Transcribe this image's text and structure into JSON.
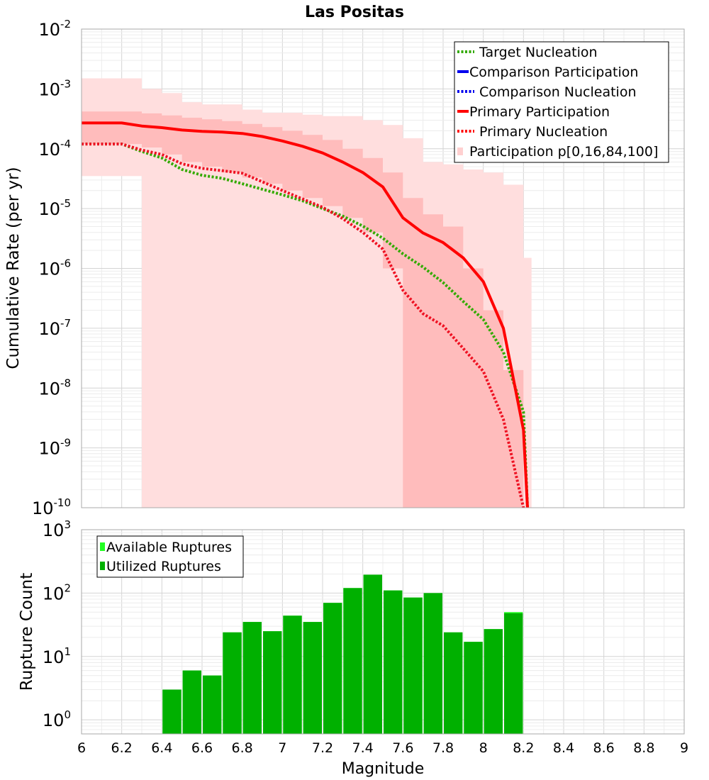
{
  "chart_data": [
    {
      "type": "line",
      "title": "Las Positas",
      "xlabel": "",
      "ylabel": "Cumulative Rate (per yr)",
      "yscale": "log",
      "xlim": [
        6,
        9
      ],
      "ylim": [
        1e-10,
        0.01
      ],
      "y_tick_exponents": [
        "-10",
        "-9",
        "-8",
        "-7",
        "-6",
        "-5",
        "-4",
        "-3",
        "-2"
      ],
      "y_tick_base": "10",
      "legend_position": "top-right",
      "legend": [
        {
          "label": "Target Nucleation",
          "color": "#33aa00",
          "style": "dotted"
        },
        {
          "label": "Comparison Participation",
          "color": "#0000ee",
          "style": "solid"
        },
        {
          "label": "Comparison Nucleation",
          "color": "#0000ee",
          "style": "dotted"
        },
        {
          "label": "Primary Participation",
          "color": "#ff0000",
          "style": "solid"
        },
        {
          "label": "Primary Nucleation",
          "color": "#ff0000",
          "style": "dotted"
        },
        {
          "label": "Participation p[0,16,84,100]",
          "color": "#ffd0d0",
          "style": "band"
        }
      ],
      "bands": {
        "name": "Participation p[0,16,84,100]",
        "x": [
          6.0,
          6.2,
          6.3,
          6.4,
          6.5,
          6.6,
          6.7,
          6.8,
          6.9,
          7.0,
          7.1,
          7.2,
          7.3,
          7.4,
          7.5,
          7.6,
          7.7,
          7.8,
          7.9,
          8.0,
          8.1,
          8.2
        ],
        "p0": [
          3.5e-05,
          3.5e-05,
          1e-10,
          1e-10,
          1e-10,
          1e-10,
          1e-10,
          1e-10,
          1e-10,
          1e-10,
          1e-10,
          1e-10,
          1e-10,
          1e-10,
          1e-10,
          1e-10,
          1e-10,
          1e-10,
          1e-10,
          1e-10,
          1e-10,
          1e-10
        ],
        "p16": [
          0.00012,
          0.00012,
          0.000105,
          8e-05,
          6e-05,
          5e-05,
          4e-05,
          3.3e-05,
          2.6e-05,
          2e-05,
          1.5e-05,
          1.1e-05,
          7e-06,
          4e-06,
          1e-06,
          1e-10,
          1e-10,
          1e-10,
          1e-10,
          1e-10,
          1e-10,
          1e-10
        ],
        "p84": [
          0.00042,
          0.00042,
          0.00039,
          0.00036,
          0.00033,
          0.00031,
          0.00029,
          0.00026,
          0.00023,
          0.0002,
          0.00017,
          0.00014,
          0.0001,
          7e-05,
          4e-05,
          1.5e-05,
          8e-06,
          5e-06,
          1e-06,
          2e-07,
          2e-08,
          1e-10
        ],
        "p100": [
          0.0015,
          0.0015,
          0.001,
          0.00085,
          0.0006,
          0.00055,
          0.00055,
          0.00045,
          0.0004,
          0.0004,
          0.00037,
          0.00035,
          0.00035,
          0.0003,
          0.00025,
          0.00015,
          6e-05,
          5.5e-05,
          4.5e-05,
          4e-05,
          2.5e-05,
          1.5e-06
        ]
      },
      "series": [
        {
          "name": "Target Nucleation",
          "color": "#33aa00",
          "style": "dotted",
          "x": [
            6.0,
            6.2,
            6.3,
            6.4,
            6.5,
            6.6,
            6.7,
            6.8,
            6.9,
            7.0,
            7.1,
            7.2,
            7.3,
            7.4,
            7.5,
            7.6,
            7.7,
            7.8,
            7.9,
            8.0,
            8.1,
            8.2,
            8.22
          ],
          "y": [
            0.00012,
            0.00012,
            9e-05,
            7e-05,
            4.5e-05,
            3.6e-05,
            3.2e-05,
            2.6e-05,
            2.1e-05,
            1.7e-05,
            1.35e-05,
            1e-05,
            7.5e-06,
            5.1e-06,
            3.2e-06,
            1.75e-06,
            1.05e-06,
            5.8e-07,
            2.8e-07,
            1.4e-07,
            4e-08,
            4e-09,
            1e-10
          ]
        },
        {
          "name": "Primary Participation",
          "color": "#ff0000",
          "style": "solid",
          "x": [
            6.0,
            6.2,
            6.3,
            6.4,
            6.5,
            6.6,
            6.7,
            6.8,
            6.9,
            7.0,
            7.1,
            7.2,
            7.3,
            7.4,
            7.5,
            7.6,
            7.7,
            7.8,
            7.9,
            8.0,
            8.1,
            8.2,
            8.22
          ],
          "y": [
            0.00027,
            0.00027,
            0.00024,
            0.000225,
            0.000205,
            0.000195,
            0.00019,
            0.00018,
            0.00016,
            0.000135,
            0.00011,
            8.5e-05,
            6e-05,
            4e-05,
            2.3e-05,
            7e-06,
            3.9e-06,
            2.7e-06,
            1.5e-06,
            6e-07,
            1e-07,
            2e-09,
            1e-10
          ]
        },
        {
          "name": "Primary Nucleation",
          "color": "#ee1122",
          "style": "dotted",
          "x": [
            6.0,
            6.2,
            6.3,
            6.4,
            6.5,
            6.6,
            6.7,
            6.8,
            6.9,
            7.0,
            7.1,
            7.2,
            7.3,
            7.4,
            7.5,
            7.6,
            7.7,
            7.8,
            7.9,
            8.0,
            8.1,
            8.2
          ],
          "y": [
            0.00012,
            0.00012,
            9.5e-05,
            8e-05,
            5.6e-05,
            4.7e-05,
            4.3e-05,
            3.9e-05,
            2.8e-05,
            2e-05,
            1.45e-05,
            1.05e-05,
            6.8e-06,
            4e-06,
            2.1e-06,
            4.3e-07,
            1.75e-07,
            1.1e-07,
            4.6e-08,
            1.9e-08,
            3e-09,
            1e-10
          ]
        }
      ]
    },
    {
      "type": "bar",
      "xlabel": "Magnitude",
      "ylabel": "Rupture Count",
      "yscale": "log",
      "xlim": [
        6,
        9
      ],
      "ylim": [
        0.6,
        1000
      ],
      "y_tick_exponents": [
        "0",
        "1",
        "2",
        "3"
      ],
      "y_tick_base": "10",
      "x_ticks": [
        "6",
        "6.2",
        "6.4",
        "6.6",
        "6.8",
        "7",
        "7.2",
        "7.4",
        "7.6",
        "7.8",
        "8",
        "8.2",
        "8.4",
        "8.6",
        "8.8",
        "9"
      ],
      "legend_position": "top-left",
      "legend": [
        {
          "label": "Available Ruptures",
          "color": "#22ff22"
        },
        {
          "label": "Utilized Ruptures",
          "color": "#00b000"
        }
      ],
      "bin_width": 0.1,
      "bin_centers": [
        6.45,
        6.55,
        6.65,
        6.75,
        6.85,
        6.95,
        7.05,
        7.15,
        7.25,
        7.35,
        7.45,
        7.55,
        7.65,
        7.75,
        7.85,
        7.95,
        8.05,
        8.15
      ],
      "series": [
        {
          "name": "Available Ruptures",
          "color": "#22ff22",
          "values": [
            3,
            6,
            5,
            24,
            35,
            25,
            44,
            35,
            70,
            120,
            195,
            110,
            85,
            100,
            24,
            17,
            27,
            50
          ]
        },
        {
          "name": "Utilized Ruptures",
          "color": "#00b000",
          "values": [
            3,
            6,
            5,
            24,
            35,
            25,
            44,
            35,
            70,
            120,
            195,
            110,
            85,
            100,
            24,
            17,
            27,
            48
          ]
        }
      ]
    }
  ]
}
